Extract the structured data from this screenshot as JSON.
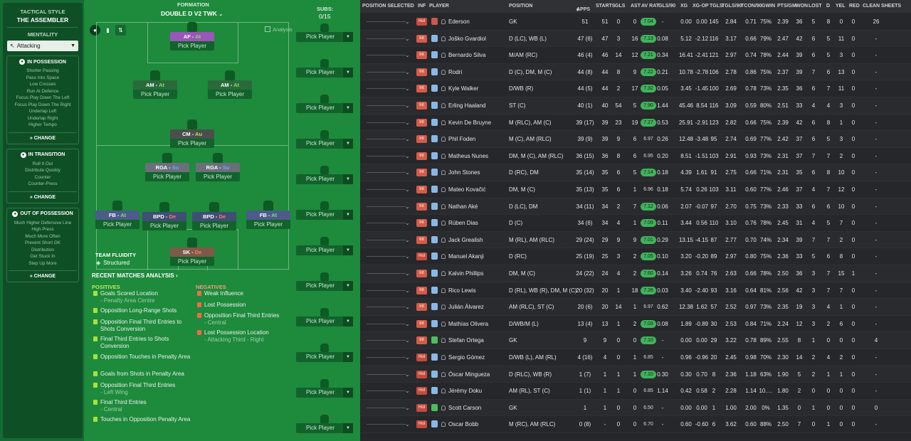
{
  "sidebar": {
    "tactical_style_label": "TACTICAL STYLE",
    "tactical_style": "THE ASSEMBLER",
    "mentality_label": "MENTALITY",
    "mentality_value": "Attacking",
    "in_possession": {
      "title": "IN POSSESSION",
      "items": [
        "Shorter Passing",
        "Pass Into Space",
        "Low Crosses",
        "Run At Defence",
        "Focus Play Down The Left",
        "Focus Play Down The Right",
        "Underlap Left",
        "Underlap Right",
        "Higher Tempo"
      ],
      "change": "CHANGE"
    },
    "in_transition": {
      "title": "IN TRANSITION",
      "items": [
        "Roll It Out",
        "Distribute Quickly",
        "Counter",
        "Counter-Press"
      ],
      "change": "CHANGE"
    },
    "out_of_possession": {
      "title": "OUT OF POSSESSION",
      "items": [
        "Much Higher Defensive Line",
        "High Press",
        "Much More Often",
        "Prevent Short GK",
        "Distribution",
        "Get Stuck In",
        "Step Up More"
      ],
      "change": "CHANGE"
    }
  },
  "formation": {
    "label": "FORMATION",
    "name": "DOUBLE D V2 TWK",
    "subs_label": "SUBS:",
    "subs_count": "0/15",
    "analysis": "Analysis",
    "team_fluidity_label": "TEAM FLUIDITY",
    "team_fluidity": "Structured",
    "players": [
      {
        "role": "AF",
        "duty": "At",
        "cls": "at",
        "color": "#9a56b8",
        "pick": "Pick Player"
      },
      {
        "role": "AM",
        "duty": "At",
        "cls": "at",
        "color": "#2a6a3a",
        "pick": "Pick Player"
      },
      {
        "role": "AM",
        "duty": "At",
        "cls": "at",
        "color": "#2a6a3a",
        "pick": "Pick Player"
      },
      {
        "role": "CM",
        "duty": "Au",
        "cls": "au",
        "color": "#4a4f4e",
        "pick": "Pick Player"
      },
      {
        "role": "RGA",
        "duty": "Su",
        "cls": "su",
        "color": "#6a6f79",
        "pick": "Pick Player"
      },
      {
        "role": "RGA",
        "duty": "Su",
        "cls": "su",
        "color": "#6a6f79",
        "pick": "Pick Player"
      },
      {
        "role": "FB",
        "duty": "At",
        "cls": "at",
        "color": "#4c5c8a",
        "pick": "Pick Player"
      },
      {
        "role": "BPD",
        "duty": "De",
        "cls": "de",
        "color": "#3f4e74",
        "pick": "Pick Player"
      },
      {
        "role": "BPD",
        "duty": "De",
        "cls": "de",
        "color": "#3f4e74",
        "pick": "Pick Player"
      },
      {
        "role": "FB",
        "duty": "At",
        "cls": "at",
        "color": "#4c5c8a",
        "pick": "Pick Player"
      },
      {
        "role": "SK",
        "duty": "De",
        "cls": "de",
        "color": "#7c5a48",
        "pick": "Pick Player"
      }
    ],
    "subs": [
      "Pick Player",
      "Pick Player",
      "Pick Player",
      "Pick Player",
      "Pick Player",
      "Pick Player",
      "Pick Player",
      "Pick Player",
      "Pick Player",
      "Pick Player",
      "Pick Player",
      "Pick Player"
    ]
  },
  "analysis": {
    "title": "RECENT MATCHES ANALYSIS",
    "positives_label": "POSITIVES",
    "negatives_label": "NEGATIVES",
    "positives": [
      [
        "Goals Scored Location",
        "- Penalty Area Centre"
      ],
      [
        "Opposition Long-Range Shots",
        ""
      ],
      [
        "Opposition Final Third Entries to Shots Conversion",
        ""
      ],
      [
        "Final Third Entries to Shots Conversion",
        ""
      ],
      [
        "Opposition Touches in Penalty Area",
        ""
      ],
      [
        "Goals from Shots in Penalty Area",
        ""
      ],
      [
        "Opposition Final Third Entries",
        "- Left Wing"
      ],
      [
        "Final Third Entries",
        "- Central"
      ],
      [
        "Touches in Opposition Penalty Area",
        ""
      ]
    ],
    "negatives": [
      [
        "Weak Influence",
        ""
      ],
      [
        "Lost Possession",
        ""
      ],
      [
        "Opposition Final Third Entries",
        "- Central"
      ],
      [
        "Lost Possession Location",
        "- Attacking Third - Right"
      ]
    ]
  },
  "table": {
    "headers": {
      "pos_sel": "POSITION SELECTED",
      "inf": "INF",
      "player": "PLAYER",
      "position": "POSITION",
      "apps": "APPS",
      "starts": "STARTS",
      "gls": "GLS",
      "ast": "AST",
      "avrat": "AV RAT",
      "gls90": "GLS/90",
      "xg": "XG",
      "xgop": "XG-OP",
      "tgls": "TGLS",
      "tgls90": "TGLS/90",
      "tcon90": "TCON/90",
      "gwin": "GWIN",
      "ptsgm": "PTS/GM",
      "won": "WON",
      "lost": "LOST",
      "d": "D",
      "yel": "YEL",
      "red": "RED",
      "cs": "CLEAN SHEETS"
    },
    "rows": [
      {
        "badge": "Hol",
        "name": "Ederson",
        "pos": "GK",
        "apps": "51",
        "starts": "51",
        "gls": "0",
        "ast": "0",
        "avrat": "7.04",
        "gls90": "-",
        "xg": "0.00",
        "xgop": "0.00",
        "tgls": "145",
        "tgls90": "2.84",
        "tcon90": "0.71",
        "gwin": "75%",
        "ptsgm": "2.39",
        "won": "36",
        "lost": "5",
        "d": "8",
        "yel": "0",
        "red": "0",
        "cs": "26"
      },
      {
        "badge": "Int",
        "name": "Joško Gvardiol",
        "pos": "D (LC), WB (L)",
        "apps": "47 (6)",
        "starts": "47",
        "gls": "3",
        "ast": "16",
        "avrat": "7.13",
        "gls90": "0.08",
        "xg": "5.12",
        "xgop": "-2.12",
        "tgls": "116",
        "tgls90": "3.17",
        "tcon90": "0.66",
        "gwin": "79%",
        "ptsgm": "2.47",
        "won": "42",
        "lost": "6",
        "d": "5",
        "yel": "11",
        "red": "0",
        "cs": "-"
      },
      {
        "badge": "Int",
        "name": "Bernardo Silva",
        "pos": "M/AM (RC)",
        "apps": "46 (4)",
        "starts": "46",
        "gls": "14",
        "ast": "12",
        "avrat": "7.21",
        "gls90": "0.34",
        "xg": "16.41",
        "xgop": "-2.41",
        "tgls": "121",
        "tgls90": "2.97",
        "tcon90": "0.74",
        "gwin": "78%",
        "ptsgm": "2.44",
        "won": "39",
        "lost": "6",
        "d": "5",
        "yel": "3",
        "red": "0",
        "cs": "-"
      },
      {
        "badge": "Int",
        "name": "Rodri",
        "pos": "D (C), DM, M (C)",
        "apps": "44 (8)",
        "starts": "44",
        "gls": "8",
        "ast": "9",
        "avrat": "7.22",
        "gls90": "0.21",
        "xg": "10.78",
        "xgop": "-2.78",
        "tgls": "106",
        "tgls90": "2.78",
        "tcon90": "0.86",
        "gwin": "75%",
        "ptsgm": "2.37",
        "won": "39",
        "lost": "7",
        "d": "6",
        "yel": "13",
        "red": "0",
        "cs": "-"
      },
      {
        "badge": "Int",
        "name": "Kyle Walker",
        "pos": "D/WB (R)",
        "apps": "44 (5)",
        "starts": "44",
        "gls": "2",
        "ast": "17",
        "avrat": "7.32",
        "gls90": "0.05",
        "xg": "3.45",
        "xgop": "-1.45",
        "tgls": "100",
        "tgls90": "2.69",
        "tcon90": "0.78",
        "gwin": "73%",
        "ptsgm": "2.35",
        "won": "36",
        "lost": "6",
        "d": "7",
        "yel": "11",
        "red": "0",
        "cs": "-"
      },
      {
        "badge": "Int",
        "name": "Erling Haaland",
        "pos": "ST (C)",
        "apps": "40 (1)",
        "starts": "40",
        "gls": "54",
        "ast": "5",
        "avrat": "7.90",
        "gls90": "1.44",
        "xg": "45.46",
        "xgop": "8.54",
        "tgls": "116",
        "tgls90": "3.09",
        "tcon90": "0.59",
        "gwin": "80%",
        "ptsgm": "2.51",
        "won": "33",
        "lost": "4",
        "d": "4",
        "yel": "3",
        "red": "0",
        "cs": "-"
      },
      {
        "badge": "Int",
        "name": "Kevin De Bruyne",
        "pos": "M (RLC), AM (C)",
        "apps": "39 (17)",
        "starts": "39",
        "gls": "23",
        "ast": "19",
        "avrat": "7.27",
        "gls90": "0.53",
        "xg": "25.91",
        "xgop": "-2.91",
        "tgls": "123",
        "tgls90": "2.82",
        "tcon90": "0.66",
        "gwin": "75%",
        "ptsgm": "2.39",
        "won": "42",
        "lost": "6",
        "d": "8",
        "yel": "1",
        "red": "0",
        "cs": "-"
      },
      {
        "badge": "Int",
        "name": "Phil Foden",
        "pos": "M (C), AM (RLC)",
        "apps": "39 (9)",
        "starts": "39",
        "gls": "9",
        "ast": "6",
        "avrat": "6.97",
        "gls90": "0.26",
        "xg": "12.48",
        "xgop": "-3.48",
        "tgls": "95",
        "tgls90": "2.74",
        "tcon90": "0.69",
        "gwin": "77%",
        "ptsgm": "2.42",
        "won": "37",
        "lost": "6",
        "d": "5",
        "yel": "3",
        "red": "0",
        "cs": "-"
      },
      {
        "badge": "Int",
        "name": "Matheus Nunes",
        "pos": "DM, M (C), AM (RLC)",
        "apps": "36 (15)",
        "starts": "36",
        "gls": "8",
        "ast": "6",
        "avrat": "6.95",
        "gls90": "0.20",
        "xg": "8.51",
        "xgop": "-1.51",
        "tgls": "103",
        "tgls90": "2.91",
        "tcon90": "0.93",
        "gwin": "73%",
        "ptsgm": "2.31",
        "won": "37",
        "lost": "7",
        "d": "7",
        "yel": "2",
        "red": "0",
        "cs": "-"
      },
      {
        "badge": "Int",
        "name": "John Stones",
        "pos": "D (RC), DM",
        "apps": "35 (14)",
        "starts": "35",
        "gls": "6",
        "ast": "5",
        "avrat": "7.14",
        "gls90": "0.18",
        "xg": "4.39",
        "xgop": "1.61",
        "tgls": "91",
        "tgls90": "2.75",
        "tcon90": "0.66",
        "gwin": "71%",
        "ptsgm": "2.31",
        "won": "35",
        "lost": "6",
        "d": "8",
        "yel": "10",
        "red": "0",
        "cs": "-"
      },
      {
        "badge": "Int",
        "name": "Mateo Kovačić",
        "pos": "DM, M (C)",
        "apps": "35 (13)",
        "starts": "35",
        "gls": "6",
        "ast": "1",
        "avrat": "6.96",
        "gls90": "0.18",
        "xg": "5.74",
        "xgop": "0.26",
        "tgls": "103",
        "tgls90": "3.11",
        "tcon90": "0.60",
        "gwin": "77%",
        "ptsgm": "2.46",
        "won": "37",
        "lost": "4",
        "d": "7",
        "yel": "12",
        "red": "0",
        "cs": "-"
      },
      {
        "badge": "Int",
        "name": "Nathan Aké",
        "pos": "D (LC), DM",
        "apps": "34 (11)",
        "starts": "34",
        "gls": "2",
        "ast": "7",
        "avrat": "7.12",
        "gls90": "0.06",
        "xg": "2.07",
        "xgop": "-0.07",
        "tgls": "97",
        "tgls90": "2.70",
        "tcon90": "0.75",
        "gwin": "73%",
        "ptsgm": "2.33",
        "won": "33",
        "lost": "6",
        "d": "6",
        "yel": "10",
        "red": "0",
        "cs": "-"
      },
      {
        "badge": "Int",
        "name": "Rúben Dias",
        "pos": "D (C)",
        "apps": "34 (6)",
        "starts": "34",
        "gls": "4",
        "ast": "1",
        "avrat": "7.09",
        "gls90": "0.11",
        "xg": "3.44",
        "xgop": "0.56",
        "tgls": "110",
        "tgls90": "3.10",
        "tcon90": "0.76",
        "gwin": "78%",
        "ptsgm": "2.45",
        "won": "31",
        "lost": "4",
        "d": "5",
        "yel": "7",
        "red": "0",
        "cs": "-"
      },
      {
        "badge": "Int",
        "name": "Jack Grealish",
        "pos": "M (RL), AM (RLC)",
        "apps": "29 (24)",
        "starts": "29",
        "gls": "9",
        "ast": "9",
        "avrat": "7.01",
        "gls90": "0.29",
        "xg": "13.15",
        "xgop": "-4.15",
        "tgls": "87",
        "tgls90": "2.77",
        "tcon90": "0.70",
        "gwin": "74%",
        "ptsgm": "2.34",
        "won": "39",
        "lost": "7",
        "d": "7",
        "yel": "2",
        "red": "0",
        "cs": "-"
      },
      {
        "badge": "Hol",
        "name": "Manuel Akanji",
        "pos": "D (RC)",
        "apps": "25 (19)",
        "starts": "25",
        "gls": "3",
        "ast": "2",
        "avrat": "7.05",
        "gls90": "0.10",
        "xg": "3.20",
        "xgop": "-0.20",
        "tgls": "89",
        "tgls90": "2.97",
        "tcon90": "0.80",
        "gwin": "75%",
        "ptsgm": "2.36",
        "won": "33",
        "lost": "5",
        "d": "6",
        "yel": "8",
        "red": "0",
        "cs": "-"
      },
      {
        "badge": "Int",
        "name": "Kalvin Phillips",
        "pos": "DM, M (C)",
        "apps": "24 (22)",
        "starts": "24",
        "gls": "4",
        "ast": "2",
        "avrat": "7.60",
        "gls90": "0.14",
        "xg": "3.26",
        "xgop": "0.74",
        "tgls": "76",
        "tgls90": "2.63",
        "tcon90": "0.66",
        "gwin": "78%",
        "ptsgm": "2.50",
        "won": "36",
        "lost": "3",
        "d": "7",
        "yel": "15",
        "red": "1",
        "cs": "-"
      },
      {
        "badge": "Int",
        "name": "Rico Lewis",
        "pos": "D (RL), WB (R), DM, M (C)",
        "apps": "20 (32)",
        "starts": "20",
        "gls": "1",
        "ast": "18",
        "avrat": "7.26",
        "gls90": "0.03",
        "xg": "3.40",
        "xgop": "-2.40",
        "tgls": "93",
        "tgls90": "3.16",
        "tcon90": "0.64",
        "gwin": "81%",
        "ptsgm": "2.56",
        "won": "42",
        "lost": "3",
        "d": "7",
        "yel": "7",
        "red": "0",
        "cs": "-"
      },
      {
        "badge": "Int",
        "name": "Julián Álvarez",
        "pos": "AM (RLC), ST (C)",
        "apps": "20 (6)",
        "starts": "20",
        "gls": "14",
        "ast": "1",
        "avrat": "6.97",
        "gls90": "0.62",
        "xg": "12.38",
        "xgop": "1.62",
        "tgls": "57",
        "tgls90": "2.52",
        "tcon90": "0.97",
        "gwin": "73%",
        "ptsgm": "2.35",
        "won": "19",
        "lost": "3",
        "d": "4",
        "yel": "1",
        "red": "0",
        "cs": "-"
      },
      {
        "badge": "Int",
        "name": "Mathías Olivera",
        "pos": "D/WB/M (L)",
        "apps": "13 (4)",
        "starts": "13",
        "gls": "1",
        "ast": "2",
        "avrat": "7.03",
        "gls90": "0.08",
        "xg": "1.89",
        "xgop": "-0.89",
        "tgls": "30",
        "tgls90": "2.53",
        "tcon90": "0.84",
        "gwin": "71%",
        "ptsgm": "2.24",
        "won": "12",
        "lost": "3",
        "d": "2",
        "yel": "6",
        "red": "0",
        "cs": "-"
      },
      {
        "badge": "Int",
        "name": "Stefan Ortega",
        "pos": "GK",
        "apps": "9",
        "starts": "9",
        "gls": "0",
        "ast": "0",
        "avrat": "7.10",
        "gls90": "-",
        "xg": "0.00",
        "xgop": "0.00",
        "tgls": "29",
        "tgls90": "3.22",
        "tcon90": "0.78",
        "gwin": "89%",
        "ptsgm": "2.55",
        "won": "8",
        "lost": "1",
        "d": "0",
        "yel": "0",
        "red": "0",
        "cs": "4"
      },
      {
        "badge": "Hol",
        "name": "Sergio Gómez",
        "pos": "D/WB (L), AM (RL)",
        "apps": "4 (16)",
        "starts": "4",
        "gls": "0",
        "ast": "1",
        "avrat": "6.85",
        "gls90": "-",
        "xg": "0.96",
        "xgop": "-0.96",
        "tgls": "20",
        "tgls90": "2.45",
        "tcon90": "0.98",
        "gwin": "70%",
        "ptsgm": "2.30",
        "won": "14",
        "lost": "2",
        "d": "4",
        "yel": "2",
        "red": "0",
        "cs": "-"
      },
      {
        "badge": "Hol",
        "name": "Óscar Mingueza",
        "pos": "D (RLC), WB (R)",
        "apps": "1 (7)",
        "starts": "1",
        "gls": "1",
        "ast": "1",
        "avrat": "7.10",
        "gls90": "0.30",
        "xg": "0.30",
        "xgop": "0.70",
        "tgls": "8",
        "tgls90": "2.36",
        "tcon90": "1.18",
        "gwin": "63%",
        "ptsgm": "1.90",
        "won": "5",
        "lost": "2",
        "d": "1",
        "yel": "1",
        "red": "0",
        "cs": "-"
      },
      {
        "badge": "Hol",
        "name": "Jérémy Doku",
        "pos": "AM (RL), ST (C)",
        "apps": "1 (1)",
        "starts": "1",
        "gls": "1",
        "ast": "0",
        "avrat": "6.85",
        "gls90": "1.14",
        "xg": "0.42",
        "xgop": "0.58",
        "tgls": "2",
        "tgls90": "2.28",
        "tcon90": "1.14",
        "gwin": "10.…",
        "ptsgm": "1.80",
        "won": "2",
        "lost": "0",
        "d": "0",
        "yel": "0",
        "red": "0",
        "cs": "-"
      },
      {
        "badge": "Hol",
        "name": "Scott Carson",
        "pos": "GK",
        "apps": "1",
        "starts": "1",
        "gls": "0",
        "ast": "0",
        "avrat": "6.50",
        "gls90": "-",
        "xg": "0.00",
        "xgop": "0.00",
        "tgls": "1",
        "tgls90": "1.00",
        "tcon90": "2.00",
        "gwin": "0%",
        "ptsgm": "1.35",
        "won": "0",
        "lost": "1",
        "d": "0",
        "yel": "0",
        "red": "0",
        "cs": "0"
      },
      {
        "badge": "Hol",
        "name": "Oscar Bobb",
        "pos": "M (RC), AM (RLC)",
        "apps": "0 (8)",
        "starts": "-",
        "gls": "0",
        "ast": "0",
        "avrat": "6.70",
        "gls90": "-",
        "xg": "0.60",
        "xgop": "-0.60",
        "tgls": "6",
        "tgls90": "3.62",
        "tcon90": "0.60",
        "gwin": "88%",
        "ptsgm": "2.50",
        "won": "7",
        "lost": "0",
        "d": "1",
        "yel": "0",
        "red": "0",
        "cs": "-"
      }
    ]
  }
}
